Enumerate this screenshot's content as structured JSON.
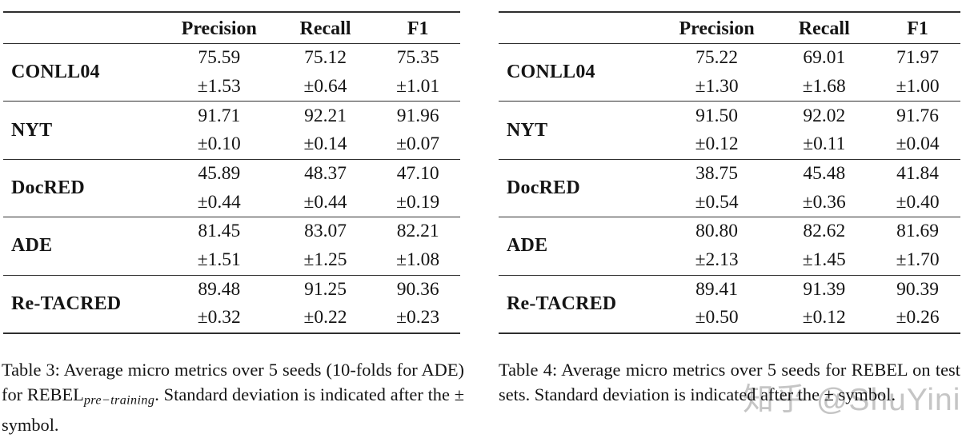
{
  "page": {
    "background": "#ffffff",
    "text_color": "#141414",
    "rule_color": "#2e2e2e"
  },
  "watermark": {
    "text": "知乎 @ShuYini",
    "color": "#c5c5c5"
  },
  "tables": [
    {
      "name": "table-3",
      "headers": {
        "precision": "Precision",
        "recall": "Recall",
        "f1": "F1"
      },
      "rows": [
        {
          "label": "CONLL04",
          "cells": [
            {
              "v": "75.59",
              "s": "±1.53"
            },
            {
              "v": "75.12",
              "s": "±0.64"
            },
            {
              "v": "75.35",
              "s": "±1.01"
            }
          ]
        },
        {
          "label": "NYT",
          "cells": [
            {
              "v": "91.71",
              "s": "±0.10"
            },
            {
              "v": "92.21",
              "s": "±0.14"
            },
            {
              "v": "91.96",
              "s": "±0.07"
            }
          ]
        },
        {
          "label": "DocRED",
          "cells": [
            {
              "v": "45.89",
              "s": "±0.44"
            },
            {
              "v": "48.37",
              "s": "±0.44"
            },
            {
              "v": "47.10",
              "s": "±0.19"
            }
          ]
        },
        {
          "label": "ADE",
          "cells": [
            {
              "v": "81.45",
              "s": "±1.51"
            },
            {
              "v": "83.07",
              "s": "±1.25"
            },
            {
              "v": "82.21",
              "s": "±1.08"
            }
          ]
        },
        {
          "label": "Re-TACRED",
          "cells": [
            {
              "v": "89.48",
              "s": "±0.32"
            },
            {
              "v": "91.25",
              "s": "±0.22"
            },
            {
              "v": "90.36",
              "s": "±0.23"
            }
          ]
        }
      ],
      "caption": {
        "prefix": "Table 3: Average micro metrics over 5 seeds (10-folds for ADE) for REBEL",
        "subscript": "pre−training",
        "suffix": ". Standard deviation is indicated after the ± symbol."
      }
    },
    {
      "name": "table-4",
      "headers": {
        "precision": "Precision",
        "recall": "Recall",
        "f1": "F1"
      },
      "rows": [
        {
          "label": "CONLL04",
          "cells": [
            {
              "v": "75.22",
              "s": "±1.30"
            },
            {
              "v": "69.01",
              "s": "±1.68"
            },
            {
              "v": "71.97",
              "s": "±1.00"
            }
          ]
        },
        {
          "label": "NYT",
          "cells": [
            {
              "v": "91.50",
              "s": "±0.12"
            },
            {
              "v": "92.02",
              "s": "±0.11"
            },
            {
              "v": "91.76",
              "s": "±0.04"
            }
          ]
        },
        {
          "label": "DocRED",
          "cells": [
            {
              "v": "38.75",
              "s": "±0.54"
            },
            {
              "v": "45.48",
              "s": "±0.36"
            },
            {
              "v": "41.84",
              "s": "±0.40"
            }
          ]
        },
        {
          "label": "ADE",
          "cells": [
            {
              "v": "80.80",
              "s": "±2.13"
            },
            {
              "v": "82.62",
              "s": "±1.45"
            },
            {
              "v": "81.69",
              "s": "±1.70"
            }
          ]
        },
        {
          "label": "Re-TACRED",
          "cells": [
            {
              "v": "89.41",
              "s": "±0.50"
            },
            {
              "v": "91.39",
              "s": "±0.12"
            },
            {
              "v": "90.39",
              "s": "±0.26"
            }
          ]
        }
      ],
      "caption": {
        "text": "Table 4: Average micro metrics over 5 seeds for REBEL on test sets. Standard deviation is indicated after the ± symbol."
      }
    }
  ]
}
